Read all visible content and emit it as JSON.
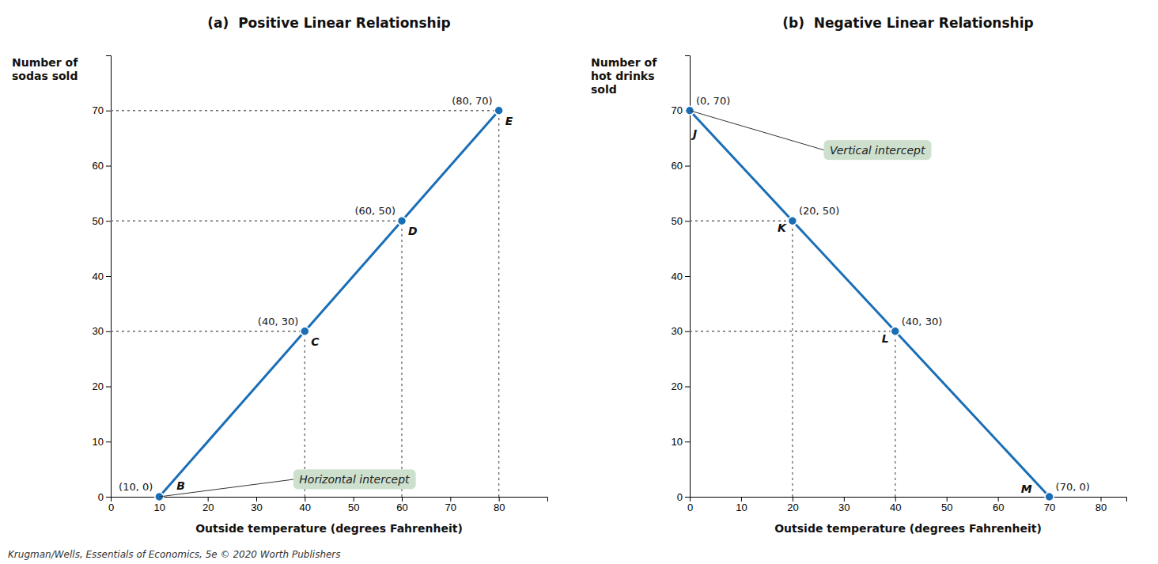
{
  "chart_data": [
    {
      "type": "line",
      "title": "(a)  Positive Linear Relationship",
      "x_label": "Outside temperature (degrees Fahrenheit)",
      "y_label": "Number of\nsodas sold",
      "x": [
        10,
        40,
        60,
        80
      ],
      "values": [
        0,
        30,
        50,
        70
      ],
      "value_labels": [
        "(10, 0)",
        "(40, 30)",
        "(60, 50)",
        "(80, 70)"
      ],
      "point_labels": [
        "B",
        "C",
        "D",
        "E"
      ],
      "data_labels": true,
      "color": "#1a6eb5",
      "marker": "circle",
      "reference_x": [
        40,
        60,
        80
      ],
      "reference_y": [
        30,
        50,
        70
      ],
      "annotations": [
        {
          "text": "Horizontal intercept",
          "x": 10,
          "y": 0,
          "color": "#cde0cd"
        }
      ],
      "xlim": [
        0,
        90
      ],
      "ylim": [
        0,
        80
      ],
      "xticks": [
        0,
        10,
        20,
        30,
        40,
        50,
        60,
        70,
        80
      ],
      "yticks": [
        0,
        10,
        20,
        30,
        40,
        50,
        60,
        70
      ],
      "grid": false
    },
    {
      "type": "line",
      "title": "(b)  Negative Linear Relationship",
      "x_label": "Outside temperature (degrees Fahrenheit)",
      "y_label": "Number of\nhot drinks\nsold",
      "x": [
        0,
        20,
        40,
        70
      ],
      "values": [
        70,
        50,
        30,
        0
      ],
      "value_labels": [
        "(0, 70)",
        "(20, 50)",
        "(40, 30)",
        "(70, 0)"
      ],
      "point_labels": [
        "J",
        "K",
        "L",
        "M"
      ],
      "data_labels": true,
      "color": "#1a6eb5",
      "marker": "circle",
      "reference_x": [
        20,
        40
      ],
      "reference_y": [
        50,
        30
      ],
      "annotations": [
        {
          "text": "Vertical intercept",
          "x": 0,
          "y": 70,
          "color": "#cde0cd"
        }
      ],
      "xlim": [
        0,
        85
      ],
      "ylim": [
        0,
        80
      ],
      "xticks": [
        0,
        10,
        20,
        30,
        40,
        50,
        60,
        70,
        80
      ],
      "yticks": [
        0,
        10,
        20,
        30,
        40,
        50,
        60,
        70
      ],
      "grid": false
    }
  ],
  "footer": "Krugman/Wells, Essentials of Economics, 5e © 2020 Worth Publishers"
}
